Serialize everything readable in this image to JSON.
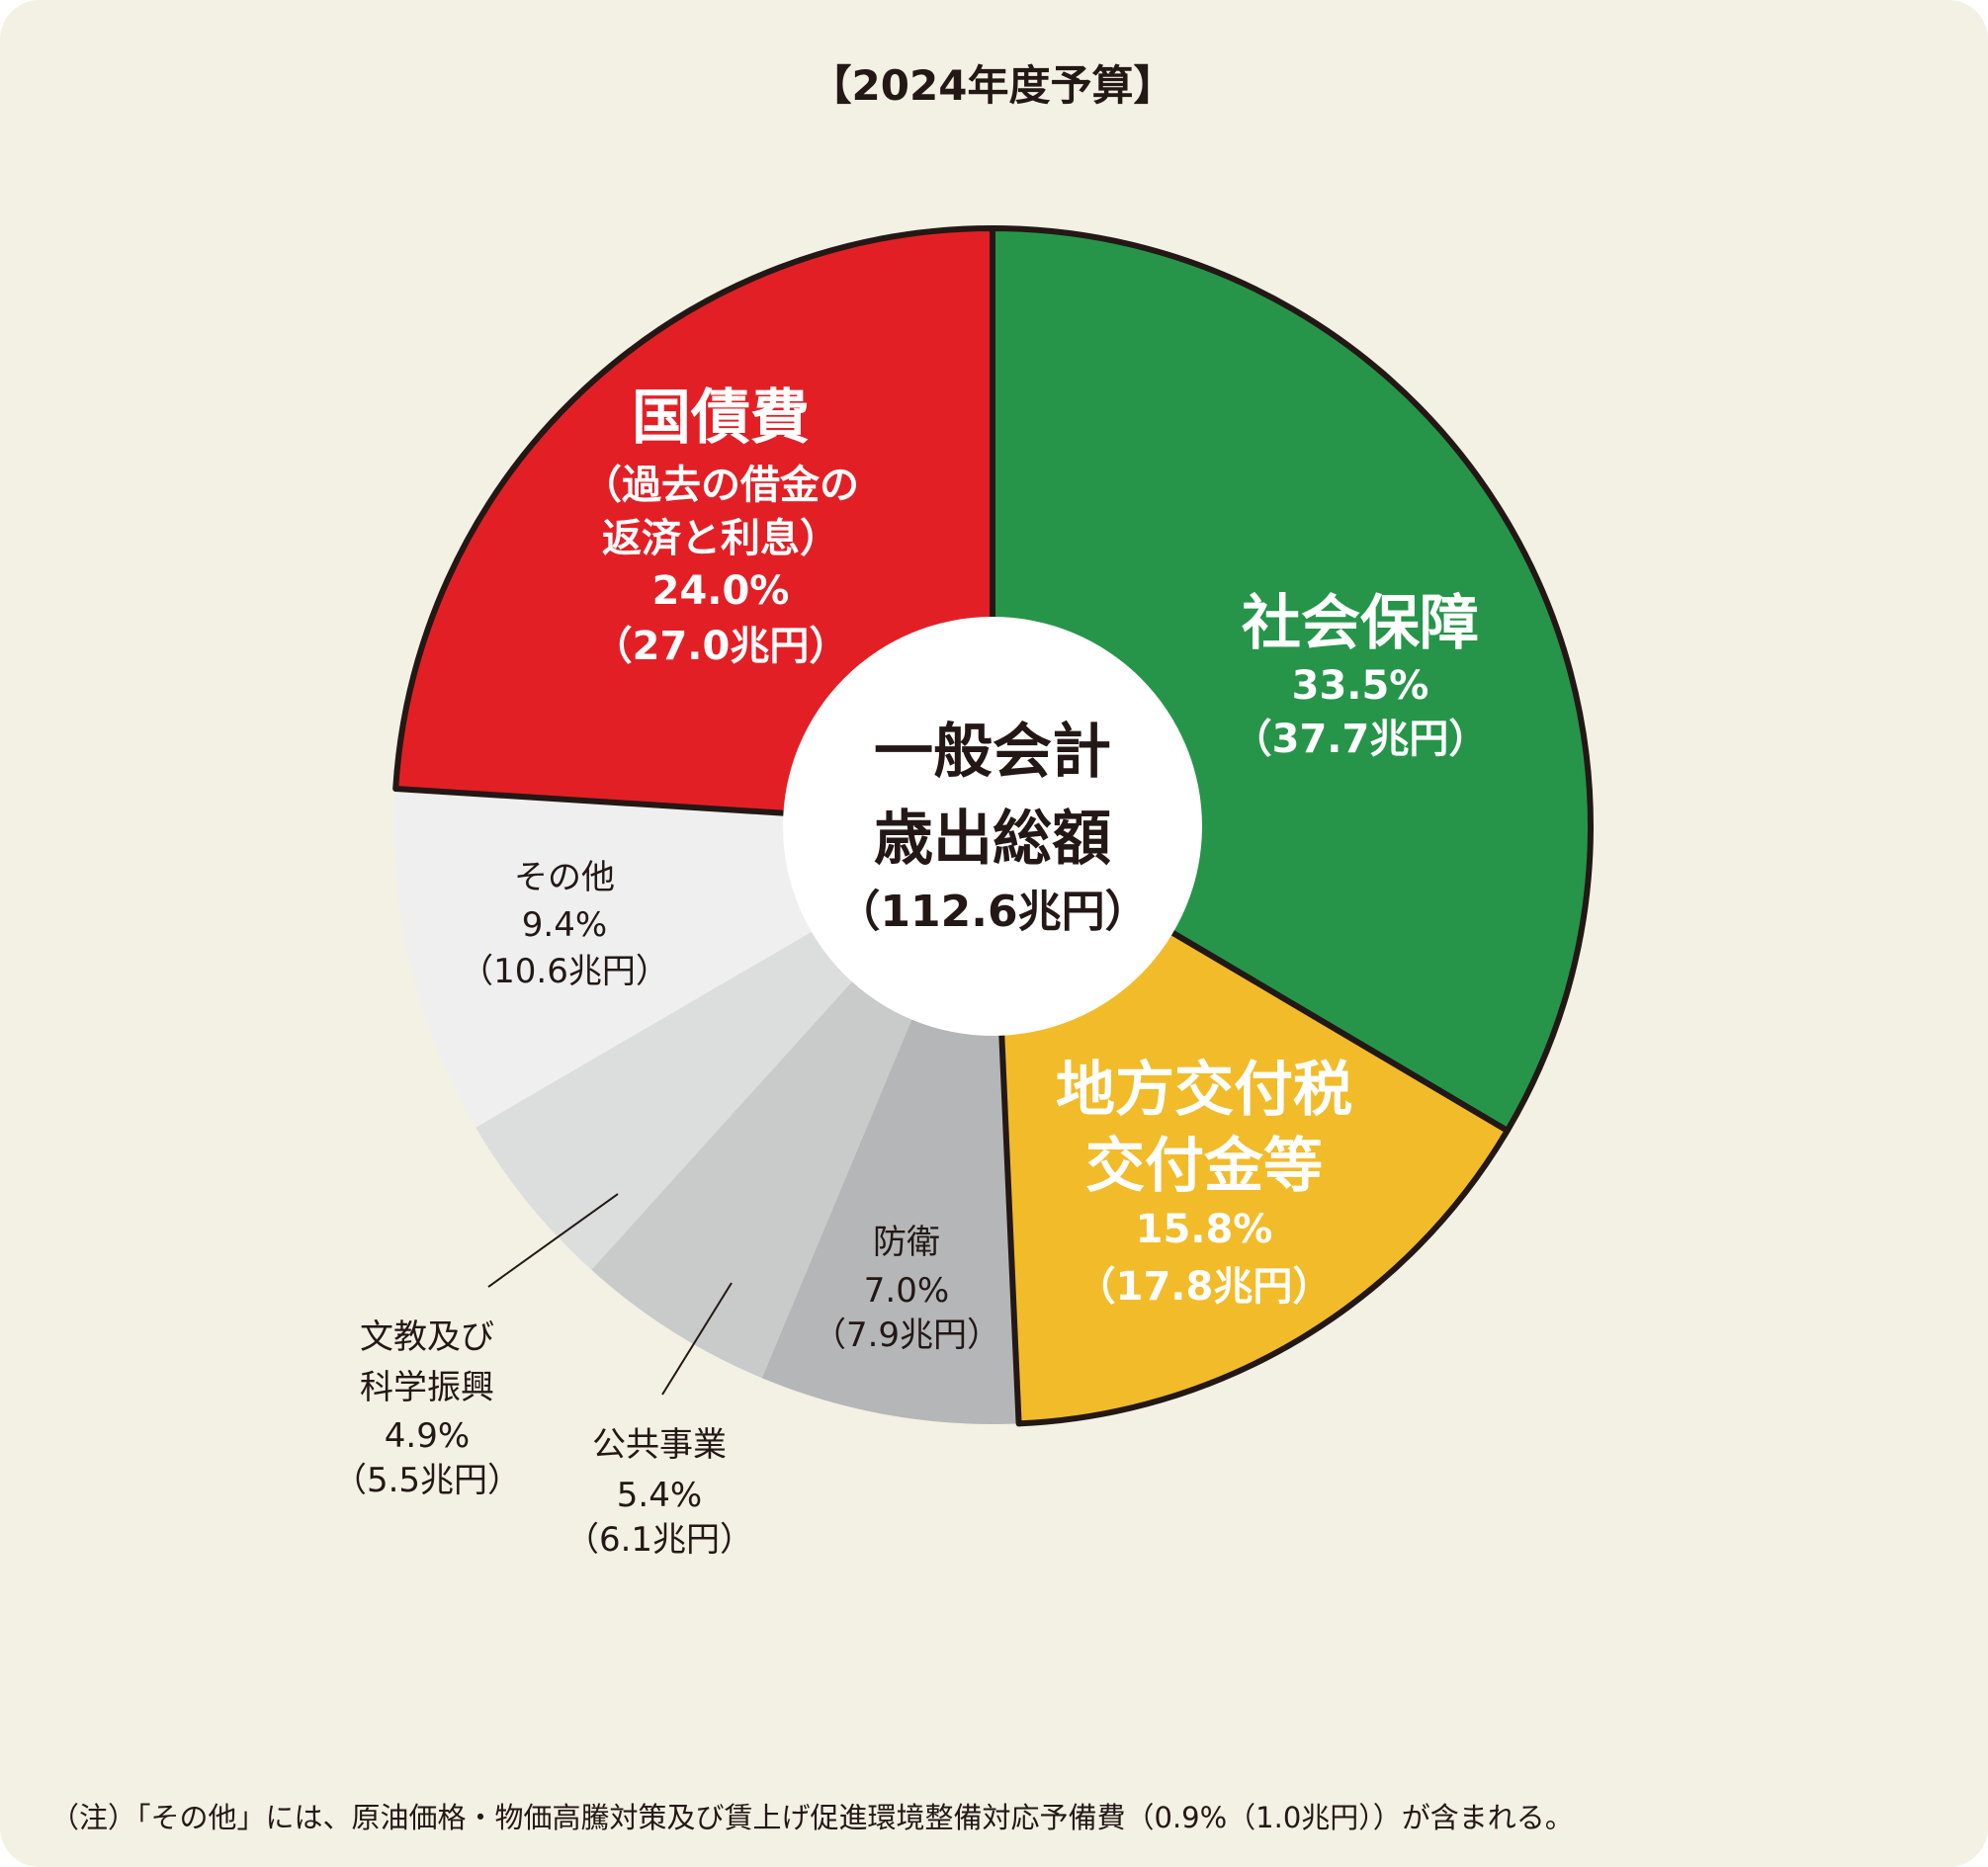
{
  "chart_data": {
    "type": "pie",
    "style": "donut",
    "title": "【2024年度予算】",
    "center_label": {
      "line1": "一般会計",
      "line2": "歳出総額",
      "total": "（112.6兆円）"
    },
    "slices": [
      {
        "name": "社会保障",
        "percent": 33.5,
        "amount": 37.7,
        "pct_label": "33.5%",
        "amt_label": "（37.7兆円）",
        "color": "#26954a"
      },
      {
        "name": "地方交付税交付金等",
        "line1": "地方交付税",
        "line2": "交付金等",
        "percent": 15.8,
        "amount": 17.8,
        "pct_label": "15.8%",
        "amt_label": "（17.8兆円）",
        "color": "#f2bb2a"
      },
      {
        "name": "防衛",
        "percent": 7.0,
        "amount": 7.9,
        "pct_label": "7.0%",
        "amt_label": "（7.9兆円）",
        "color": "#b5b6b8"
      },
      {
        "name": "公共事業",
        "percent": 5.4,
        "amount": 6.1,
        "pct_label": "5.4%",
        "amt_label": "（6.1兆円）",
        "color": "#c9caca"
      },
      {
        "name": "文教及び科学振興",
        "line1": "文教及び",
        "line2": "科学振興",
        "percent": 4.9,
        "amount": 5.5,
        "pct_label": "4.9%",
        "amt_label": "（5.5兆円）",
        "color": "#dcdddd"
      },
      {
        "name": "その他",
        "percent": 9.4,
        "amount": 10.6,
        "pct_label": "9.4%",
        "amt_label": "（10.6兆円）",
        "color": "#efefef"
      },
      {
        "name": "国債費",
        "sub1": "（過去の借金の",
        "sub2": "返済と利息）",
        "percent": 24.0,
        "amount": 27.0,
        "pct_label": "24.0%",
        "amt_label": "（27.0兆円）",
        "color": "#e31f26"
      }
    ],
    "outlined": [
      "社会保障",
      "地方交付税交付金等",
      "国債費"
    ],
    "note": "（注）「その他」には、原油価格・物価高騰対策及び賃上げ促進環境整備対応予備費（0.9%（1.0兆円））が含まれる。"
  }
}
